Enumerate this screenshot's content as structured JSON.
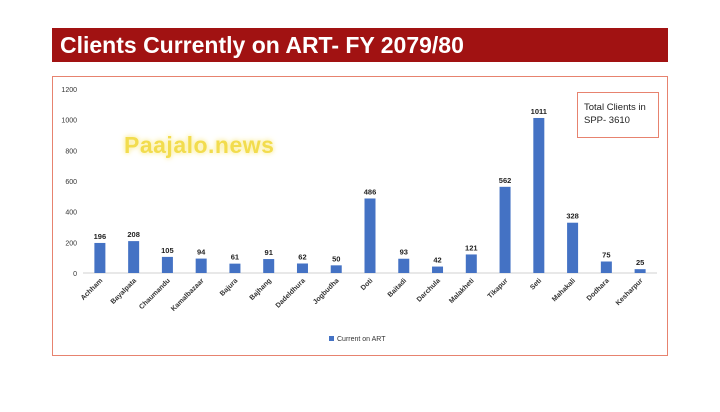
{
  "header": {
    "title": "Clients Currently on ART- FY 2079/80"
  },
  "info_box": {
    "text": "Total Clients in SPP- 3610"
  },
  "watermark": {
    "text": "Paajalo.news"
  },
  "colors": {
    "bar": "#4472c4",
    "title_bg": "#a11212",
    "frame": "#e7836f"
  },
  "chart_data": {
    "type": "bar",
    "title": "",
    "xlabel": "",
    "ylabel": "",
    "ylim": [
      0,
      1200
    ],
    "yticks": [
      0,
      200,
      400,
      600,
      800,
      1000,
      1200
    ],
    "grid": false,
    "legend": "bottom",
    "categories": [
      "Achham",
      "Bayalpata",
      "Chaumandu",
      "Kamalbazaar",
      "Bajura",
      "Bajhang",
      "Dadeldhura",
      "Jogbudha",
      "Doti",
      "Baitadi",
      "Darchula",
      "Malakheti",
      "Tikapur",
      "Seti",
      "Mahakali",
      "Dodhara",
      "Kesharpur"
    ],
    "series": [
      {
        "name": "Current on ART",
        "values": [
          196,
          208,
          105,
          94,
          61,
          91,
          62,
          50,
          486,
          93,
          42,
          121,
          562,
          1011,
          328,
          75,
          25
        ]
      }
    ]
  }
}
